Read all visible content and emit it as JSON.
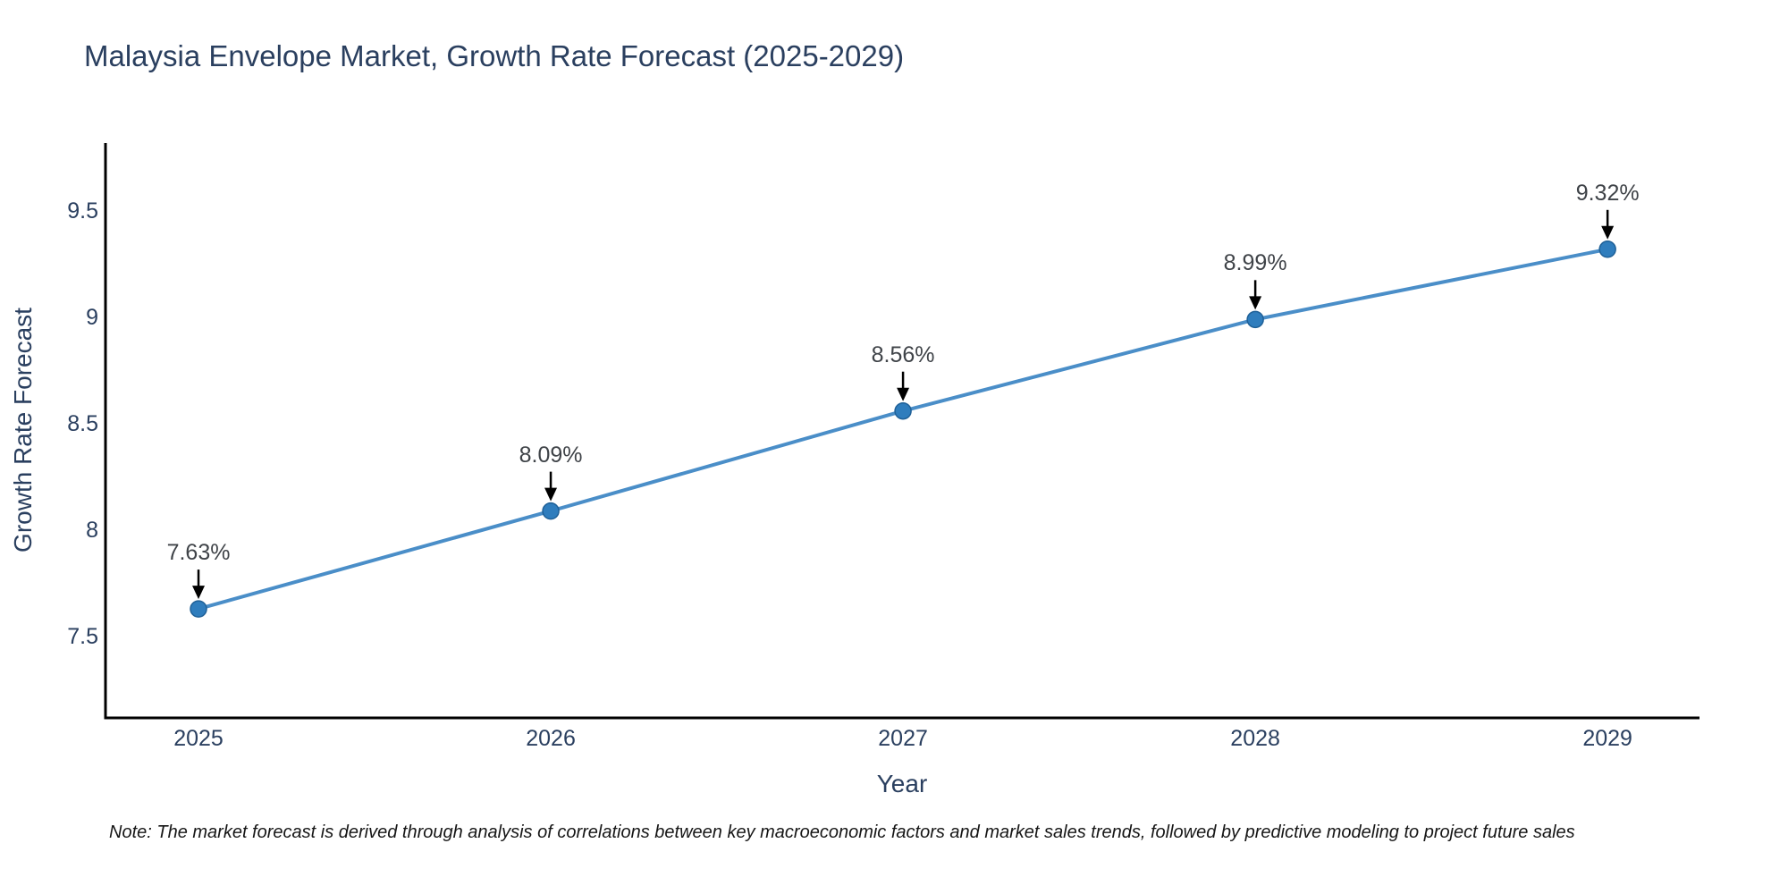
{
  "page": {
    "note": "Note: The market forecast is derived through analysis of correlations between key macroeconomic factors and market sales trends, followed by predictive modeling to project future sales"
  },
  "chart_data": {
    "type": "line",
    "title": "Malaysia Envelope Market, Growth Rate Forecast (2025-2029)",
    "xlabel": "Year",
    "ylabel": "Growth Rate Forecast",
    "x": [
      2025,
      2026,
      2027,
      2028,
      2029
    ],
    "values": [
      7.63,
      8.09,
      8.56,
      8.99,
      9.32
    ],
    "point_labels": [
      "7.63%",
      "8.09%",
      "8.56%",
      "8.99%",
      "9.32%"
    ],
    "xtick_labels": [
      "2025",
      "2026",
      "2027",
      "2028",
      "2029"
    ],
    "ytick_values": [
      7.5,
      8,
      8.5,
      9,
      9.5
    ],
    "ytick_labels": [
      "7.5",
      "8",
      "8.5",
      "9",
      "9.5"
    ],
    "xlim": [
      2024.736,
      2029.261
    ],
    "ylim": [
      7.118,
      9.819
    ],
    "grid": false,
    "legend": "none",
    "colors": {
      "line": "#4a8ec8",
      "marker_fill": "#2f7dbd",
      "marker_edge": "#1f6097",
      "axis": "#000000",
      "arrow": "#000000",
      "title_text": "#2a3f5f",
      "tick_text": "#2a3f5f",
      "point_label_text": "#3f4348",
      "note_text": "#161616"
    }
  }
}
